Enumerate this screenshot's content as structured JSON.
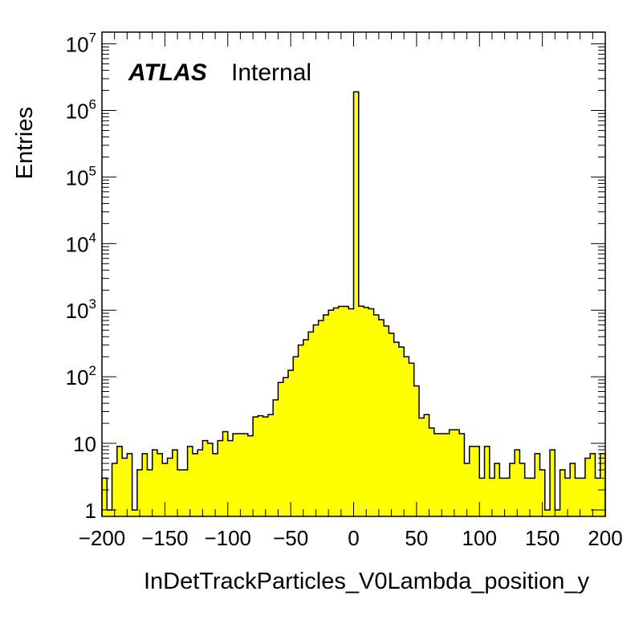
{
  "chart_data": {
    "type": "bar",
    "style": "histogram-step-filled",
    "fill_color": "#ffff00",
    "line_color": "#000000",
    "xlabel": "InDetTrackParticles_V0Lambda_position_y",
    "ylabel": "Entries",
    "atlas_label": "ATLAS",
    "status_label": "Internal",
    "xlim": [
      -200,
      200
    ],
    "ylim": [
      0.8,
      15000000
    ],
    "yscale": "log",
    "grid": false,
    "bin_width": 4,
    "x_ticks": [
      {
        "value": -200,
        "label": "−200"
      },
      {
        "value": -150,
        "label": "−150"
      },
      {
        "value": -100,
        "label": "−100"
      },
      {
        "value": -50,
        "label": "−50"
      },
      {
        "value": 0,
        "label": "0"
      },
      {
        "value": 50,
        "label": "50"
      },
      {
        "value": 100,
        "label": "100"
      },
      {
        "value": 150,
        "label": "150"
      },
      {
        "value": 200,
        "label": "200"
      }
    ],
    "y_ticks": [
      {
        "value": 1,
        "base": "1",
        "exp": ""
      },
      {
        "value": 10,
        "base": "10",
        "exp": ""
      },
      {
        "value": 100,
        "base": "10",
        "exp": "2"
      },
      {
        "value": 1000,
        "base": "10",
        "exp": "3"
      },
      {
        "value": 10000,
        "base": "10",
        "exp": "4"
      },
      {
        "value": 100000,
        "base": "10",
        "exp": "5"
      },
      {
        "value": 1000000,
        "base": "10",
        "exp": "6"
      },
      {
        "value": 10000000,
        "base": "10",
        "exp": "7"
      }
    ],
    "x_bin_low_edges": [
      -200,
      -196,
      -192,
      -188,
      -184,
      -180,
      -176,
      -172,
      -168,
      -164,
      -160,
      -156,
      -152,
      -148,
      -144,
      -140,
      -136,
      -132,
      -128,
      -124,
      -120,
      -116,
      -112,
      -108,
      -104,
      -100,
      -96,
      -92,
      -88,
      -84,
      -80,
      -76,
      -72,
      -68,
      -64,
      -60,
      -56,
      -52,
      -48,
      -44,
      -40,
      -36,
      -32,
      -28,
      -24,
      -20,
      -16,
      -12,
      -8,
      -4,
      0,
      4,
      8,
      12,
      16,
      20,
      24,
      28,
      32,
      36,
      40,
      44,
      48,
      52,
      56,
      60,
      64,
      68,
      72,
      76,
      80,
      84,
      88,
      92,
      96,
      100,
      104,
      108,
      112,
      116,
      120,
      124,
      128,
      132,
      136,
      140,
      144,
      148,
      152,
      156,
      160,
      164,
      168,
      172,
      176,
      180,
      184,
      188,
      192,
      196
    ],
    "values": [
      3,
      1,
      5,
      9,
      6,
      7,
      1,
      4,
      7,
      4,
      8,
      7,
      5,
      6,
      8,
      4,
      4,
      9,
      7,
      8,
      11,
      10,
      7,
      11,
      15,
      11,
      14,
      14,
      14,
      13,
      25,
      26,
      25,
      27,
      45,
      82,
      97,
      125,
      200,
      300,
      360,
      470,
      600,
      700,
      850,
      1000,
      1080,
      1140,
      1140,
      1050,
      1900000,
      1150,
      1100,
      1050,
      850,
      720,
      580,
      450,
      330,
      280,
      200,
      160,
      73,
      24,
      27,
      17,
      14,
      14,
      14,
      16,
      16,
      14,
      5,
      9,
      9,
      3,
      9,
      3,
      5,
      3,
      3,
      5,
      8,
      5,
      3,
      3,
      7,
      4,
      1,
      8,
      1,
      4,
      3,
      5,
      3,
      3,
      6,
      7,
      3,
      7
    ]
  }
}
